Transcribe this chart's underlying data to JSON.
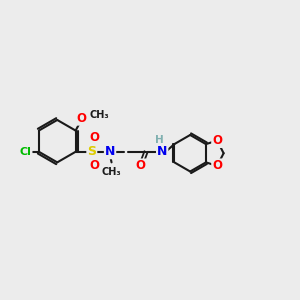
{
  "bg_color": "#ececec",
  "bond_color": "#1a1a1a",
  "atom_colors": {
    "O": "#ff0000",
    "N": "#0000ee",
    "S": "#ddcc00",
    "Cl": "#00bb00",
    "H": "#80b0b0",
    "C": "#1a1a1a"
  },
  "figsize": [
    3.0,
    3.0
  ],
  "dpi": 100,
  "xlim": [
    0,
    10
  ],
  "ylim": [
    2,
    8
  ]
}
